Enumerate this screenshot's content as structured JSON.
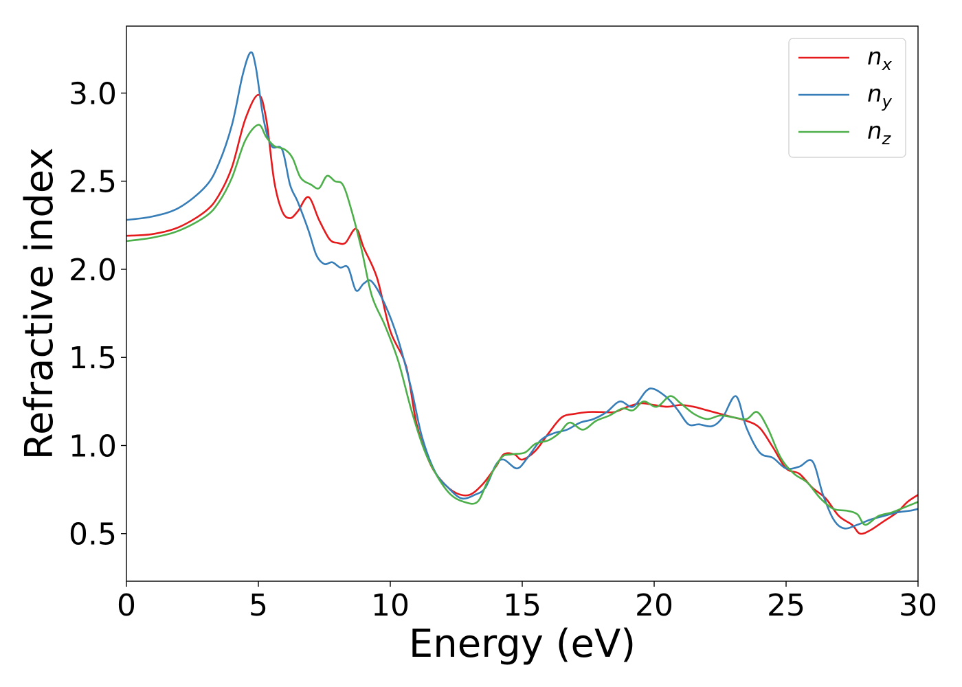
{
  "chart_data": {
    "type": "line",
    "xlabel": "Energy (eV)",
    "ylabel": "Refractive index",
    "xlim": [
      0,
      30
    ],
    "ylim": [
      0.23,
      3.38
    ],
    "xticks": [
      0,
      5,
      10,
      15,
      20,
      25,
      30
    ],
    "xtick_labels": [
      "0",
      "5",
      "10",
      "15",
      "20",
      "25",
      "30"
    ],
    "yticks": [
      0.5,
      1.0,
      1.5,
      2.0,
      2.5,
      3.0
    ],
    "ytick_labels": [
      "0.5",
      "1.0",
      "1.5",
      "2.0",
      "2.5",
      "3.0"
    ],
    "grid": false,
    "legend_position": "top-right",
    "series": [
      {
        "name": "n",
        "subscript": "x",
        "color": "#e41a1c",
        "points": [
          [
            0,
            2.19
          ],
          [
            1,
            2.2
          ],
          [
            2,
            2.24
          ],
          [
            3,
            2.33
          ],
          [
            3.5,
            2.42
          ],
          [
            4,
            2.58
          ],
          [
            4.5,
            2.85
          ],
          [
            5,
            2.99
          ],
          [
            5.3,
            2.85
          ],
          [
            5.6,
            2.5
          ],
          [
            5.9,
            2.33
          ],
          [
            6.2,
            2.29
          ],
          [
            6.5,
            2.33
          ],
          [
            6.9,
            2.41
          ],
          [
            7.3,
            2.28
          ],
          [
            7.7,
            2.17
          ],
          [
            8.0,
            2.15
          ],
          [
            8.3,
            2.15
          ],
          [
            8.7,
            2.23
          ],
          [
            9.0,
            2.12
          ],
          [
            9.5,
            1.95
          ],
          [
            10,
            1.65
          ],
          [
            10.6,
            1.45
          ],
          [
            11,
            1.12
          ],
          [
            11.5,
            0.9
          ],
          [
            12,
            0.79
          ],
          [
            12.5,
            0.73
          ],
          [
            13,
            0.72
          ],
          [
            13.5,
            0.78
          ],
          [
            14,
            0.88
          ],
          [
            14.3,
            0.95
          ],
          [
            14.7,
            0.95
          ],
          [
            15,
            0.92
          ],
          [
            15.5,
            0.97
          ],
          [
            16,
            1.07
          ],
          [
            16.5,
            1.16
          ],
          [
            17,
            1.18
          ],
          [
            17.5,
            1.19
          ],
          [
            18,
            1.19
          ],
          [
            18.5,
            1.19
          ],
          [
            19,
            1.22
          ],
          [
            19.5,
            1.24
          ],
          [
            20,
            1.23
          ],
          [
            20.5,
            1.22
          ],
          [
            21,
            1.23
          ],
          [
            21.5,
            1.22
          ],
          [
            22,
            1.2
          ],
          [
            22.5,
            1.18
          ],
          [
            23,
            1.16
          ],
          [
            23.5,
            1.14
          ],
          [
            24,
            1.1
          ],
          [
            24.5,
            0.99
          ],
          [
            25,
            0.87
          ],
          [
            25.5,
            0.84
          ],
          [
            26,
            0.76
          ],
          [
            26.5,
            0.7
          ],
          [
            27,
            0.6
          ],
          [
            27.5,
            0.55
          ],
          [
            27.8,
            0.5
          ],
          [
            28.2,
            0.52
          ],
          [
            28.7,
            0.57
          ],
          [
            29.2,
            0.62
          ],
          [
            29.6,
            0.68
          ],
          [
            30,
            0.72
          ]
        ]
      },
      {
        "name": "n",
        "subscript": "y",
        "color": "#377eb8",
        "points": [
          [
            0,
            2.28
          ],
          [
            1,
            2.3
          ],
          [
            2,
            2.35
          ],
          [
            3,
            2.47
          ],
          [
            3.5,
            2.6
          ],
          [
            4,
            2.82
          ],
          [
            4.4,
            3.1
          ],
          [
            4.7,
            3.23
          ],
          [
            4.9,
            3.15
          ],
          [
            5.2,
            2.85
          ],
          [
            5.5,
            2.7
          ],
          [
            5.9,
            2.68
          ],
          [
            6.2,
            2.48
          ],
          [
            6.5,
            2.38
          ],
          [
            6.9,
            2.22
          ],
          [
            7.2,
            2.08
          ],
          [
            7.5,
            2.03
          ],
          [
            7.8,
            2.04
          ],
          [
            8.1,
            2.01
          ],
          [
            8.4,
            2.01
          ],
          [
            8.7,
            1.88
          ],
          [
            9.0,
            1.92
          ],
          [
            9.3,
            1.93
          ],
          [
            9.8,
            1.8
          ],
          [
            10.3,
            1.6
          ],
          [
            10.8,
            1.32
          ],
          [
            11.2,
            1.05
          ],
          [
            11.7,
            0.85
          ],
          [
            12.2,
            0.76
          ],
          [
            12.7,
            0.7
          ],
          [
            13.2,
            0.72
          ],
          [
            13.6,
            0.76
          ],
          [
            14,
            0.89
          ],
          [
            14.3,
            0.92
          ],
          [
            14.8,
            0.87
          ],
          [
            15.2,
            0.93
          ],
          [
            15.7,
            1.03
          ],
          [
            16.2,
            1.07
          ],
          [
            16.7,
            1.09
          ],
          [
            17.2,
            1.13
          ],
          [
            17.7,
            1.15
          ],
          [
            18.2,
            1.19
          ],
          [
            18.7,
            1.25
          ],
          [
            19.2,
            1.22
          ],
          [
            19.7,
            1.31
          ],
          [
            20,
            1.32
          ],
          [
            20.5,
            1.27
          ],
          [
            20.9,
            1.2
          ],
          [
            21.3,
            1.12
          ],
          [
            21.7,
            1.12
          ],
          [
            22.2,
            1.11
          ],
          [
            22.6,
            1.16
          ],
          [
            23.1,
            1.28
          ],
          [
            23.5,
            1.1
          ],
          [
            24,
            0.96
          ],
          [
            24.5,
            0.93
          ],
          [
            25,
            0.87
          ],
          [
            25.5,
            0.88
          ],
          [
            26,
            0.91
          ],
          [
            26.4,
            0.72
          ],
          [
            26.8,
            0.58
          ],
          [
            27.2,
            0.53
          ],
          [
            27.7,
            0.55
          ],
          [
            28.2,
            0.58
          ],
          [
            28.7,
            0.6
          ],
          [
            29.2,
            0.62
          ],
          [
            29.7,
            0.63
          ],
          [
            30,
            0.64
          ]
        ]
      },
      {
        "name": "n",
        "subscript": "z",
        "color": "#4daf4a",
        "points": [
          [
            0,
            2.16
          ],
          [
            1,
            2.18
          ],
          [
            2,
            2.22
          ],
          [
            3,
            2.3
          ],
          [
            3.5,
            2.38
          ],
          [
            4,
            2.52
          ],
          [
            4.5,
            2.73
          ],
          [
            5,
            2.82
          ],
          [
            5.3,
            2.75
          ],
          [
            5.6,
            2.7
          ],
          [
            6.0,
            2.68
          ],
          [
            6.3,
            2.63
          ],
          [
            6.6,
            2.52
          ],
          [
            7.0,
            2.48
          ],
          [
            7.3,
            2.46
          ],
          [
            7.6,
            2.53
          ],
          [
            7.9,
            2.5
          ],
          [
            8.2,
            2.48
          ],
          [
            8.5,
            2.35
          ],
          [
            8.9,
            2.12
          ],
          [
            9.3,
            1.85
          ],
          [
            9.8,
            1.68
          ],
          [
            10.3,
            1.48
          ],
          [
            10.8,
            1.2
          ],
          [
            11.3,
            0.97
          ],
          [
            11.8,
            0.82
          ],
          [
            12.3,
            0.72
          ],
          [
            12.8,
            0.68
          ],
          [
            13.3,
            0.68
          ],
          [
            13.7,
            0.8
          ],
          [
            14.2,
            0.93
          ],
          [
            14.6,
            0.95
          ],
          [
            15.1,
            0.96
          ],
          [
            15.5,
            1.01
          ],
          [
            16.0,
            1.03
          ],
          [
            16.4,
            1.07
          ],
          [
            16.8,
            1.13
          ],
          [
            17.3,
            1.09
          ],
          [
            17.8,
            1.14
          ],
          [
            18.3,
            1.17
          ],
          [
            18.8,
            1.21
          ],
          [
            19.2,
            1.2
          ],
          [
            19.6,
            1.25
          ],
          [
            20.1,
            1.22
          ],
          [
            20.6,
            1.28
          ],
          [
            21,
            1.24
          ],
          [
            21.5,
            1.18
          ],
          [
            22,
            1.15
          ],
          [
            22.5,
            1.17
          ],
          [
            23,
            1.16
          ],
          [
            23.5,
            1.15
          ],
          [
            23.9,
            1.19
          ],
          [
            24.3,
            1.1
          ],
          [
            24.8,
            0.93
          ],
          [
            25.3,
            0.84
          ],
          [
            25.8,
            0.79
          ],
          [
            26.3,
            0.7
          ],
          [
            26.8,
            0.64
          ],
          [
            27.3,
            0.63
          ],
          [
            27.7,
            0.61
          ],
          [
            28,
            0.55
          ],
          [
            28.5,
            0.6
          ],
          [
            29,
            0.62
          ],
          [
            29.5,
            0.65
          ],
          [
            30,
            0.68
          ]
        ]
      }
    ]
  }
}
